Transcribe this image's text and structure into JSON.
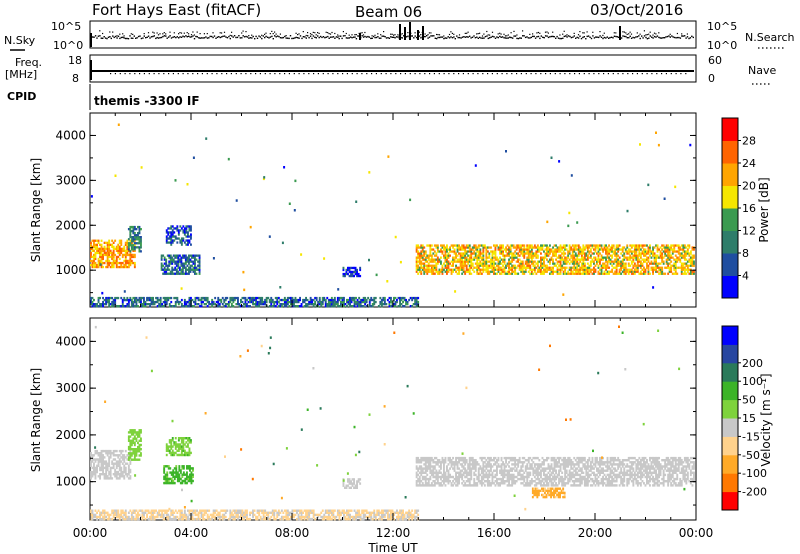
{
  "header": {
    "title": "Fort Hays East (fitACF)",
    "beam": "Beam 06",
    "date": "03/Oct/2016"
  },
  "status_panels": {
    "nsky_label": "N.Sky",
    "nsearch_label": "N.Search",
    "noise_ticks": [
      "10^5",
      "10^0"
    ],
    "freq_label": "Freq.",
    "freq_unit": "[MHz]",
    "freq_ticks": [
      "18",
      "8"
    ],
    "nave_label": "Nave",
    "nave_ticks": [
      "60",
      "0"
    ],
    "cpid_label": "CPID",
    "cpid_text": "themis -3300 IF"
  },
  "colors": {
    "power": [
      "#0000ff",
      "#1f4ea0",
      "#2e7d6a",
      "#3a9a50",
      "#f5e600",
      "#ffa500",
      "#ff6400",
      "#ff0000"
    ],
    "velocity": [
      "#ff0000",
      "#ff7800",
      "#ffaa28",
      "#ffd28c",
      "#c8c8c8",
      "#7ed23c",
      "#3cb428",
      "#2a7a5a",
      "#2846a0",
      "#0000ff"
    ]
  },
  "chart_data": [
    {
      "type": "heatmap",
      "name": "power",
      "xlabel": "Time UT",
      "ylabel": "Slant Range [km]",
      "x_ticks": [
        "00:00",
        "04:00",
        "08:00",
        "12:00",
        "16:00",
        "20:00",
        "00:00"
      ],
      "xlim": [
        0,
        24
      ],
      "ylim": [
        180,
        4500
      ],
      "y_ticks": [
        1000,
        2000,
        3000,
        4000
      ],
      "colorbar_label": "Power [dB]",
      "colorbar_ticks": [
        4,
        8,
        12,
        16,
        20,
        24,
        28
      ],
      "colorbar_range": [
        0,
        32
      ],
      "regions": [
        {
          "t0": 0.0,
          "t1": 1.8,
          "r0": 1050,
          "r1": 1650,
          "value": 22
        },
        {
          "t0": 1.5,
          "t1": 2.0,
          "r0": 1400,
          "r1": 1950,
          "value": 10
        },
        {
          "t0": 2.8,
          "t1": 4.3,
          "r0": 900,
          "r1": 1350,
          "value": 8
        },
        {
          "t0": 3.0,
          "t1": 4.0,
          "r0": 1550,
          "r1": 2000,
          "value": 6
        },
        {
          "t0": 12.9,
          "t1": 23.9,
          "r0": 900,
          "r1": 1550,
          "value": 20
        },
        {
          "t0": 0.0,
          "t1": 13.0,
          "r0": 180,
          "r1": 400,
          "value": 8
        },
        {
          "t0": 10.0,
          "t1": 10.7,
          "r0": 850,
          "r1": 1050,
          "value": 6
        }
      ]
    },
    {
      "type": "heatmap",
      "name": "velocity",
      "xlabel": "Time UT",
      "ylabel": "Slant Range [km]",
      "x_ticks": [
        "00:00",
        "04:00",
        "08:00",
        "12:00",
        "16:00",
        "20:00",
        "00:00"
      ],
      "xlim": [
        0,
        24
      ],
      "ylim": [
        180,
        4500
      ],
      "y_ticks": [
        1000,
        2000,
        3000,
        4000
      ],
      "colorbar_label": "Velocity [m s⁻¹]",
      "colorbar_ticks": [
        "-200",
        "-100",
        "-50",
        "-15",
        "15",
        "50",
        "100",
        "200"
      ],
      "regions": [
        {
          "t0": 0.0,
          "t1": 1.6,
          "r0": 1050,
          "r1": 1650,
          "value": 0
        },
        {
          "t0": 1.5,
          "t1": 2.0,
          "r0": 1450,
          "r1": 2100,
          "value": 30
        },
        {
          "t0": 2.9,
          "t1": 4.1,
          "r0": 950,
          "r1": 1350,
          "value": 60
        },
        {
          "t0": 3.0,
          "t1": 4.0,
          "r0": 1550,
          "r1": 1950,
          "value": 40
        },
        {
          "t0": 12.9,
          "t1": 23.9,
          "r0": 900,
          "r1": 1500,
          "value": 0
        },
        {
          "t0": 0.0,
          "t1": 13.0,
          "r0": 180,
          "r1": 400,
          "value": -20
        },
        {
          "t0": 10.0,
          "t1": 10.7,
          "r0": 850,
          "r1": 1050,
          "value": 0
        },
        {
          "t0": 17.5,
          "t1": 18.8,
          "r0": 650,
          "r1": 850,
          "value": -60
        }
      ]
    }
  ]
}
